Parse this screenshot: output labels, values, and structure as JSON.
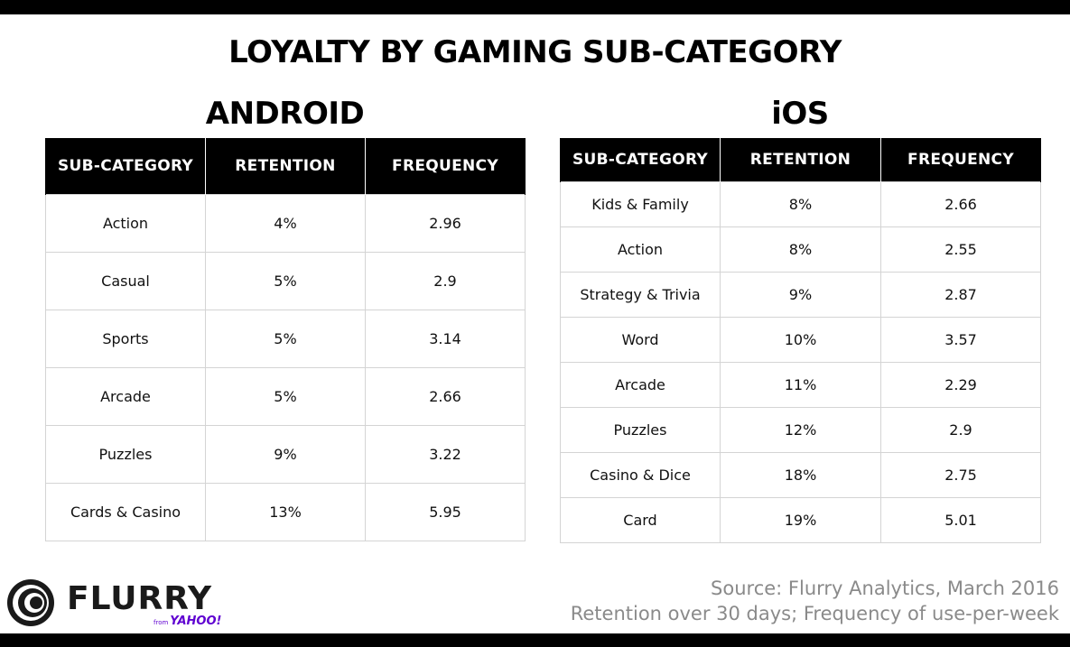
{
  "title": "LOYALTY BY GAMING SUB-CATEGORY",
  "android": {
    "label": "ANDROID",
    "headers": [
      "SUB-CATEGORY",
      "RETENTION",
      "FREQUENCY"
    ],
    "rows": [
      {
        "category": "Action",
        "retention": "4%",
        "frequency": "2.96"
      },
      {
        "category": "Casual",
        "retention": "5%",
        "frequency": "2.9"
      },
      {
        "category": "Sports",
        "retention": "5%",
        "frequency": "3.14"
      },
      {
        "category": "Arcade",
        "retention": "5%",
        "frequency": "2.66"
      },
      {
        "category": "Puzzles",
        "retention": "9%",
        "frequency": "3.22"
      },
      {
        "category": "Cards & Casino",
        "retention": "13%",
        "frequency": "5.95"
      }
    ]
  },
  "ios": {
    "label": "iOS",
    "headers": [
      "SUB-CATEGORY",
      "RETENTION",
      "FREQUENCY"
    ],
    "rows": [
      {
        "category": "Kids & Family",
        "retention": "8%",
        "frequency": "2.66"
      },
      {
        "category": "Action",
        "retention": "8%",
        "frequency": "2.55"
      },
      {
        "category": "Strategy & Trivia",
        "retention": "9%",
        "frequency": "2.87"
      },
      {
        "category": "Word",
        "retention": "10%",
        "frequency": "3.57"
      },
      {
        "category": "Arcade",
        "retention": "11%",
        "frequency": "2.29"
      },
      {
        "category": "Puzzles",
        "retention": "12%",
        "frequency": "2.9"
      },
      {
        "category": "Casino & Dice",
        "retention": "18%",
        "frequency": "2.75"
      },
      {
        "category": "Card",
        "retention": "19%",
        "frequency": "5.01"
      }
    ]
  },
  "logo": {
    "wordmark": "FLURRY",
    "from": "from",
    "parent": "YAHOO!",
    "icon": "flurry-swirl-icon"
  },
  "footnotes": {
    "source": "Source: Flurry Analytics, March 2016",
    "definition": "Retention over 30 days; Frequency of use-per-week"
  },
  "colors": {
    "header_background": "#000000",
    "header_text": "#ffffff",
    "cell_border": "#d4d4d4",
    "footnote_text": "#8a8a8a",
    "yahoo_purple": "#5f01d1"
  }
}
